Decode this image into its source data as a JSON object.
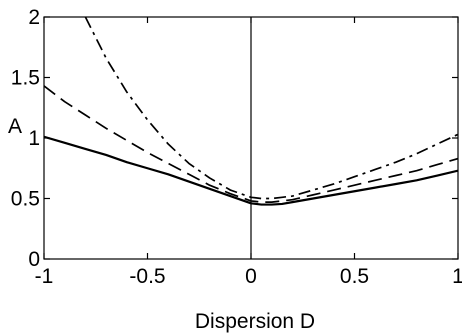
{
  "chart_data": {
    "type": "line",
    "title": "",
    "xlabel": "Dispersion D",
    "ylabel": "A",
    "xlim": [
      -1,
      1
    ],
    "ylim": [
      0,
      2
    ],
    "x_ticks": [
      -1,
      -0.5,
      0,
      0.5,
      1
    ],
    "x_tick_labels": [
      "-1",
      "-0.5",
      "0",
      "0.5",
      "1"
    ],
    "y_ticks": [
      0,
      0.5,
      1,
      1.5,
      2
    ],
    "y_tick_labels": [
      "0",
      "0.5",
      "1",
      "1.5",
      "2"
    ],
    "grid": false,
    "legend": "none",
    "reference_line": {
      "x": 0
    },
    "series": [
      {
        "style": "solid",
        "color": "#000000",
        "x": [
          -1,
          -0.9,
          -0.8,
          -0.7,
          -0.6,
          -0.5,
          -0.4,
          -0.3,
          -0.2,
          -0.1,
          0,
          0.05,
          0.1,
          0.15,
          0.2,
          0.3,
          0.4,
          0.5,
          0.6,
          0.7,
          0.8,
          0.9,
          1
        ],
        "y": [
          1.01,
          0.96,
          0.91,
          0.86,
          0.8,
          0.75,
          0.7,
          0.64,
          0.58,
          0.52,
          0.46,
          0.45,
          0.45,
          0.455,
          0.47,
          0.5,
          0.53,
          0.56,
          0.59,
          0.62,
          0.65,
          0.69,
          0.73
        ]
      },
      {
        "style": "dashed",
        "color": "#000000",
        "x": [
          -1,
          -0.9,
          -0.8,
          -0.7,
          -0.6,
          -0.5,
          -0.4,
          -0.3,
          -0.2,
          -0.1,
          0,
          0.05,
          0.1,
          0.15,
          0.2,
          0.3,
          0.4,
          0.5,
          0.6,
          0.7,
          0.8,
          0.9,
          1
        ],
        "y": [
          1.43,
          1.3,
          1.19,
          1.08,
          0.98,
          0.88,
          0.79,
          0.7,
          0.61,
          0.54,
          0.48,
          0.47,
          0.47,
          0.48,
          0.49,
          0.53,
          0.57,
          0.61,
          0.65,
          0.69,
          0.73,
          0.78,
          0.83
        ]
      },
      {
        "style": "dashdot",
        "color": "#000000",
        "x": [
          -0.8,
          -0.7,
          -0.6,
          -0.5,
          -0.4,
          -0.3,
          -0.2,
          -0.1,
          0,
          0.05,
          0.1,
          0.15,
          0.2,
          0.3,
          0.4,
          0.5,
          0.6,
          0.7,
          0.8,
          0.9,
          1
        ],
        "y": [
          2.0,
          1.66,
          1.38,
          1.15,
          0.95,
          0.79,
          0.67,
          0.57,
          0.51,
          0.5,
          0.5,
          0.51,
          0.52,
          0.57,
          0.62,
          0.68,
          0.74,
          0.8,
          0.87,
          0.95,
          1.03
        ]
      }
    ]
  }
}
